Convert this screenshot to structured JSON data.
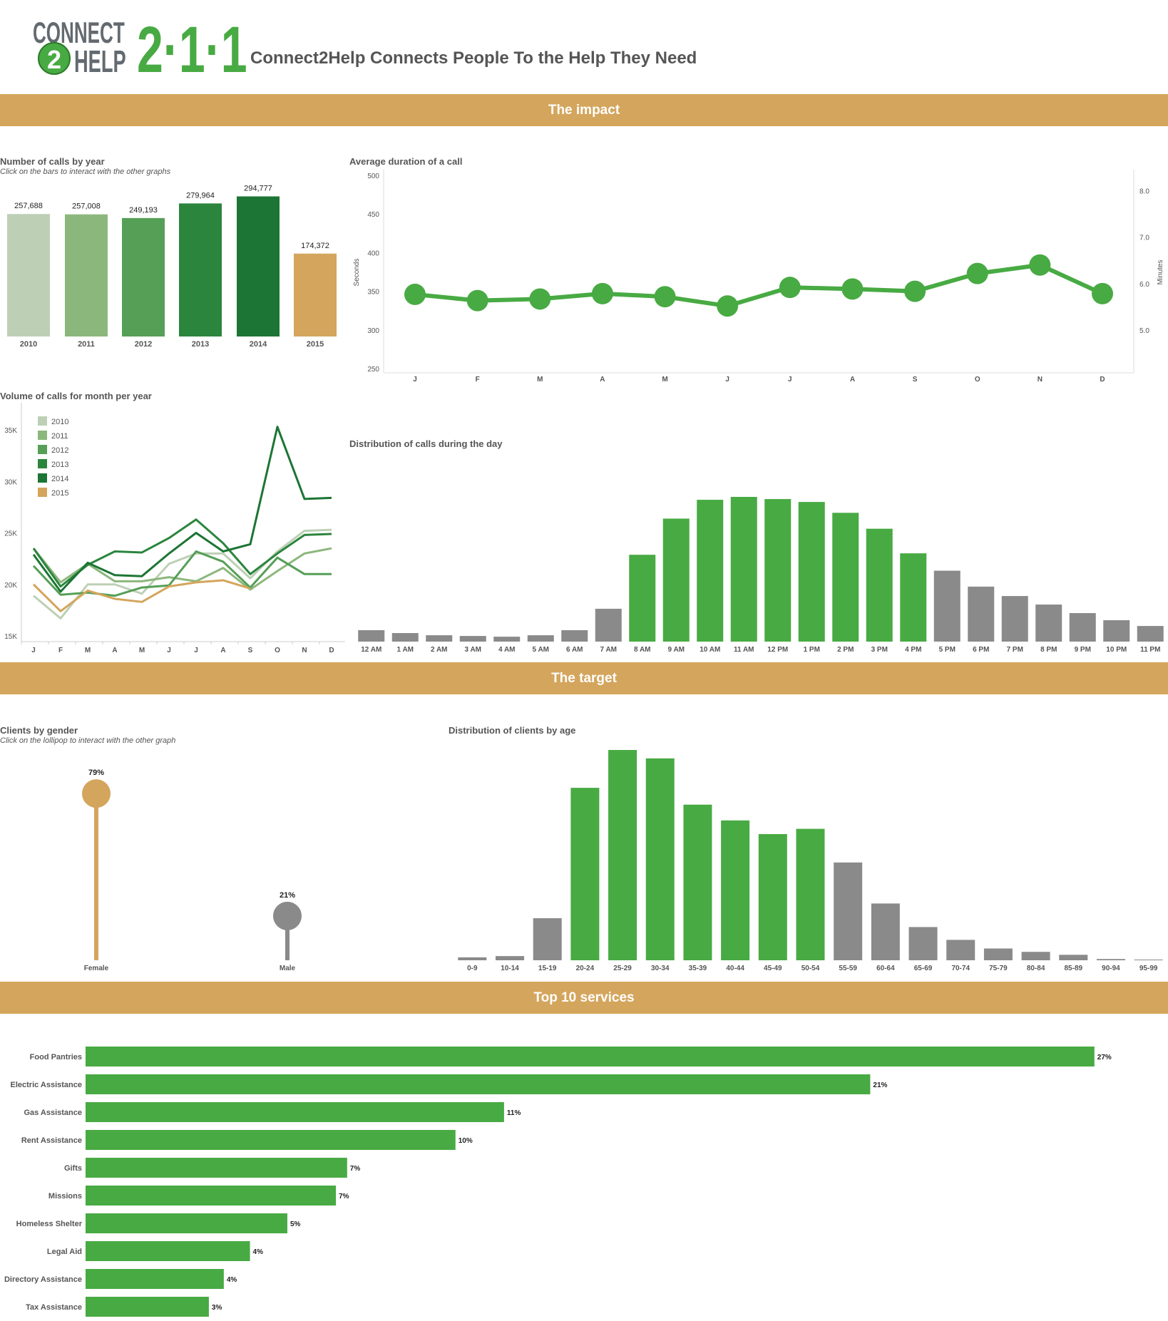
{
  "header": {
    "title": "Connect2Help Connects People To the Help They Need",
    "logo": {
      "line1": "CONNECT",
      "circle": "2",
      "line2": "HELP",
      "number": "2·1·1"
    }
  },
  "sections": {
    "impact": "The impact",
    "target": "The target",
    "services": "Top 10 services"
  },
  "colors": {
    "band": "#d4a55c",
    "green": "#48aa43",
    "gray": "#8a8a8a",
    "years": {
      "2010": "#bdd0b5",
      "2011": "#8cb77c",
      "2012": "#559f56",
      "2013": "#2b853d",
      "2014": "#1c7534",
      "2015": "#d4a55c"
    }
  },
  "chart_data": {
    "calls_by_year": {
      "type": "bar",
      "title": "Number of calls by year",
      "subtitle": "Click on the bars to interact with the other graphs",
      "categories": [
        "2010",
        "2011",
        "2012",
        "2013",
        "2014",
        "2015"
      ],
      "values": [
        257688,
        257008,
        249193,
        279964,
        294777,
        174372
      ],
      "labels": [
        "257,688",
        "257,008",
        "249,193",
        "279,964",
        "294,777",
        "174,372"
      ],
      "ylim": [
        0,
        300000
      ]
    },
    "avg_duration": {
      "type": "line",
      "title": "Average duration of a call",
      "ylabel": "Seconds",
      "y2label": "Minutes",
      "categories": [
        "J",
        "F",
        "M",
        "A",
        "M",
        "J",
        "J",
        "A",
        "S",
        "O",
        "N",
        "D"
      ],
      "values": [
        346,
        338,
        340,
        347,
        343,
        331,
        355,
        353,
        350,
        373,
        384,
        347
      ],
      "ylim": [
        250,
        500
      ],
      "yticks": [
        "500",
        "450",
        "400",
        "350",
        "300",
        "250"
      ],
      "y2ticks": [
        "8.0",
        "7.0",
        "6.0",
        "5.0"
      ]
    },
    "volume_by_month": {
      "type": "line",
      "title": "Volume of calls for month per year",
      "categories": [
        "J",
        "F",
        "M",
        "A",
        "M",
        "J",
        "J",
        "A",
        "S",
        "O",
        "N",
        "D"
      ],
      "yticks": [
        "35K",
        "30K",
        "25K",
        "20K",
        "15K"
      ],
      "ylim": [
        15000,
        35000
      ],
      "legend_position": "top-left",
      "series": [
        {
          "name": "2010",
          "values": [
            18900,
            16700,
            20000,
            20000,
            19100,
            22000,
            23000,
            23000,
            20600,
            23200,
            25200,
            25300
          ]
        },
        {
          "name": "2011",
          "values": [
            23500,
            20200,
            22000,
            20300,
            20300,
            20700,
            20300,
            21600,
            19500,
            21300,
            23000,
            23500
          ]
        },
        {
          "name": "2012",
          "values": [
            21800,
            19000,
            19200,
            18900,
            19700,
            19900,
            23200,
            22200,
            19700,
            22600,
            21000,
            21000
          ]
        },
        {
          "name": "2013",
          "values": [
            23500,
            19800,
            21900,
            23200,
            23100,
            24500,
            26300,
            24000,
            21000,
            23000,
            24800,
            24900
          ]
        },
        {
          "name": "2014",
          "values": [
            22900,
            19300,
            22100,
            20900,
            20800,
            23000,
            25000,
            23200,
            23900,
            35300,
            28300,
            28400
          ]
        },
        {
          "name": "2015",
          "values": [
            20000,
            17400,
            19400,
            18600,
            18300,
            19800,
            20200,
            20400,
            19600
          ]
        }
      ]
    },
    "calls_by_hour": {
      "type": "bar",
      "title": "Distribution of calls during the day",
      "categories": [
        "12 AM",
        "1 AM",
        "2 AM",
        "3 AM",
        "4 AM",
        "5 AM",
        "6 AM",
        "7 AM",
        "8 AM",
        "9 AM",
        "10 AM",
        "11 AM",
        "12 PM",
        "1 PM",
        "2 PM",
        "3 PM",
        "4 PM",
        "5 PM",
        "6 PM",
        "7 PM",
        "8 PM",
        "9 PM",
        "10 PM",
        "11 PM"
      ],
      "values": [
        7.9,
        5.9,
        4.4,
        3.9,
        3.4,
        4.4,
        7.9,
        22.7,
        60,
        85,
        98,
        100,
        98.5,
        96.5,
        89,
        78,
        61,
        49,
        38,
        31.5,
        25.6,
        19.7,
        14.8,
        10.8
      ],
      "highlight": [
        false,
        false,
        false,
        false,
        false,
        false,
        false,
        false,
        true,
        true,
        true,
        true,
        true,
        true,
        true,
        true,
        true,
        false,
        false,
        false,
        false,
        false,
        false,
        false
      ],
      "ylim": [
        0,
        100
      ]
    },
    "clients_by_gender": {
      "type": "bar",
      "title": "Clients by gender",
      "subtitle": "Click on the lollipop to interact with the other graph",
      "categories": [
        "Female",
        "Male"
      ],
      "values": [
        79,
        21
      ],
      "labels": [
        "79%",
        "21%"
      ]
    },
    "clients_by_age": {
      "type": "bar",
      "title": "Distribution of clients by age",
      "categories": [
        "0-9",
        "10-14",
        "15-19",
        "20-24",
        "25-29",
        "30-34",
        "35-39",
        "40-44",
        "45-49",
        "50-54",
        "55-59",
        "60-64",
        "65-69",
        "70-74",
        "75-79",
        "80-84",
        "85-89",
        "90-94",
        "95-99"
      ],
      "values": [
        1.4,
        2,
        20,
        82,
        100,
        96,
        74,
        66.5,
        60,
        62.5,
        46.5,
        27,
        15.8,
        9.7,
        5.6,
        4,
        2.6,
        0.6,
        0.2
      ],
      "highlight": [
        false,
        false,
        false,
        true,
        true,
        true,
        true,
        true,
        true,
        true,
        false,
        false,
        false,
        false,
        false,
        false,
        false,
        false,
        false
      ],
      "ylim": [
        0,
        100
      ]
    },
    "top_services": {
      "type": "bar",
      "orientation": "horizontal",
      "title": "Top 10 services",
      "categories": [
        "Food Pantries",
        "Electric Assistance",
        "Gas Assistance",
        "Rent Assistance",
        "Gifts",
        "Missions",
        "Homeless Shelter",
        "Legal Aid",
        "Directory Assistance",
        "Tax Assistance"
      ],
      "values": [
        27,
        21,
        11.2,
        9.9,
        7,
        6.7,
        5.4,
        4.4,
        3.7,
        3.3
      ],
      "labels": [
        "27%",
        "21%",
        "11%",
        "10%",
        "7%",
        "7%",
        "5%",
        "4%",
        "4%",
        "3%"
      ]
    }
  }
}
